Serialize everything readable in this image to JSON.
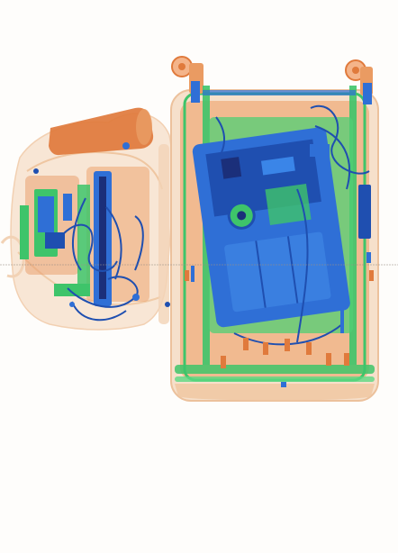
{
  "image": {
    "kind": "x-ray baggage scan",
    "background": "#fefdfb",
    "palette": {
      "organic": "#e07a3c",
      "organic_light": "#f3c9a3",
      "mixed": "#3ec46a",
      "metal": "#2f6fd6",
      "metal_dark": "#1f4fb0",
      "dense": "#1b2f7a"
    },
    "objects": [
      {
        "name": "soft-bag",
        "material": "organic"
      },
      {
        "name": "electronics-in-bag",
        "material": "metal"
      },
      {
        "name": "cylindrical-container",
        "material": "organic"
      },
      {
        "name": "wheeled-suitcase",
        "material": "organic"
      },
      {
        "name": "suitcase-wheels",
        "material": "mixed"
      },
      {
        "name": "laptop",
        "material": "metal"
      },
      {
        "name": "cables",
        "material": "metal"
      }
    ]
  }
}
